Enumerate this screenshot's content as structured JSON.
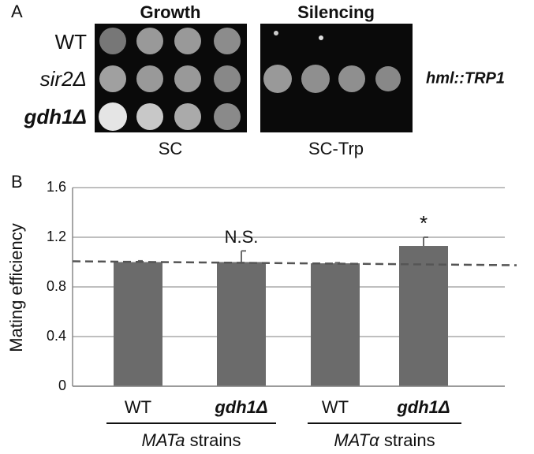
{
  "panel_a": {
    "label": "A",
    "columns": [
      "Growth",
      "Silencing"
    ],
    "rows": [
      "WT",
      "sir2Δ",
      "gdh1Δ"
    ],
    "reporter": "hml::TRP1",
    "media": [
      "SC",
      "SC-Trp"
    ]
  },
  "chart_data": {
    "type": "bar",
    "panel_label": "B",
    "ylabel": "Mating efficiency",
    "categories": [
      "WT",
      "gdh1Δ",
      "WT",
      "gdh1Δ"
    ],
    "values": [
      1.0,
      1.0,
      0.99,
      1.13
    ],
    "errors": [
      0.01,
      0.09,
      0.005,
      0.07
    ],
    "annotations": [
      null,
      "N.S.",
      null,
      "*"
    ],
    "color": "#6b6b6b",
    "reference_line": 1.0,
    "groups": [
      {
        "strain": "MATa",
        "label": "strains"
      },
      {
        "strain": "MATα",
        "label": "strains"
      }
    ],
    "ylim": [
      0,
      1.6
    ],
    "yticks": [
      0,
      0.4,
      0.8,
      1.2,
      1.6
    ],
    "grid": true
  }
}
